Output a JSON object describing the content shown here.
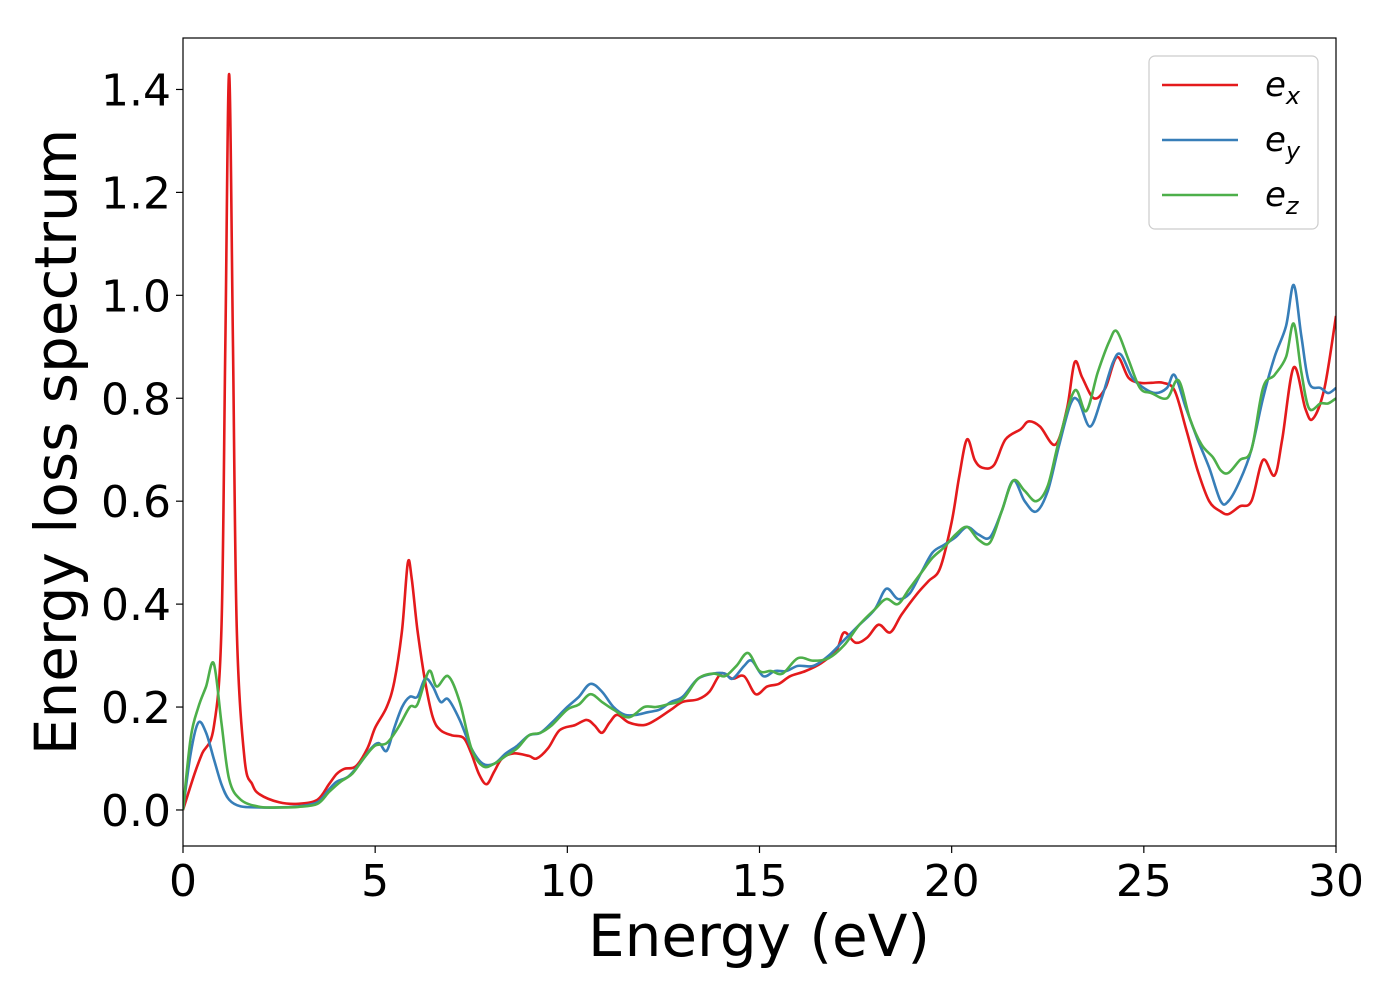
{
  "chart_data": {
    "type": "line",
    "title": "",
    "xlabel": "Energy (eV)",
    "ylabel": "Energy loss spectrum",
    "xlim": [
      0,
      30
    ],
    "ylim": [
      -0.07,
      1.5
    ],
    "xticks": [
      0,
      5,
      10,
      15,
      20,
      25,
      30
    ],
    "xtick_labels": [
      "0",
      "5",
      "10",
      "15",
      "20",
      "25",
      "30"
    ],
    "yticks": [
      0.0,
      0.2,
      0.4,
      0.6,
      0.8,
      1.0,
      1.2,
      1.4
    ],
    "ytick_labels": [
      "0.0",
      "0.2",
      "0.4",
      "0.6",
      "0.8",
      "1.0",
      "1.2",
      "1.4"
    ],
    "grid": false,
    "legend_position": "top-right",
    "series": [
      {
        "name": "e",
        "subscript": "x",
        "color": "#e41a1c",
        "points": [
          [
            0,
            0.0
          ],
          [
            0.3,
            0.07
          ],
          [
            0.5,
            0.11
          ],
          [
            0.8,
            0.16
          ],
          [
            1.0,
            0.35
          ],
          [
            1.1,
            0.9
          ],
          [
            1.2,
            1.43
          ],
          [
            1.3,
            0.9
          ],
          [
            1.4,
            0.35
          ],
          [
            1.6,
            0.1
          ],
          [
            1.8,
            0.05
          ],
          [
            2.0,
            0.03
          ],
          [
            2.5,
            0.015
          ],
          [
            3.0,
            0.012
          ],
          [
            3.5,
            0.02
          ],
          [
            3.8,
            0.05
          ],
          [
            4.0,
            0.07
          ],
          [
            4.2,
            0.08
          ],
          [
            4.5,
            0.085
          ],
          [
            4.8,
            0.12
          ],
          [
            5.0,
            0.16
          ],
          [
            5.3,
            0.2
          ],
          [
            5.5,
            0.25
          ],
          [
            5.7,
            0.35
          ],
          [
            5.85,
            0.48
          ],
          [
            5.95,
            0.45
          ],
          [
            6.1,
            0.35
          ],
          [
            6.3,
            0.25
          ],
          [
            6.5,
            0.18
          ],
          [
            6.7,
            0.155
          ],
          [
            7.0,
            0.145
          ],
          [
            7.3,
            0.14
          ],
          [
            7.5,
            0.11
          ],
          [
            7.7,
            0.07
          ],
          [
            7.9,
            0.05
          ],
          [
            8.1,
            0.075
          ],
          [
            8.3,
            0.1
          ],
          [
            8.6,
            0.11
          ],
          [
            9.0,
            0.105
          ],
          [
            9.2,
            0.1
          ],
          [
            9.5,
            0.12
          ],
          [
            9.8,
            0.155
          ],
          [
            10.2,
            0.165
          ],
          [
            10.5,
            0.175
          ],
          [
            10.7,
            0.165
          ],
          [
            10.9,
            0.15
          ],
          [
            11.1,
            0.17
          ],
          [
            11.3,
            0.185
          ],
          [
            11.6,
            0.17
          ],
          [
            12.0,
            0.165
          ],
          [
            12.3,
            0.175
          ],
          [
            12.7,
            0.195
          ],
          [
            13.0,
            0.21
          ],
          [
            13.4,
            0.215
          ],
          [
            13.7,
            0.23
          ],
          [
            14.0,
            0.265
          ],
          [
            14.3,
            0.255
          ],
          [
            14.6,
            0.26
          ],
          [
            14.9,
            0.225
          ],
          [
            15.2,
            0.24
          ],
          [
            15.5,
            0.245
          ],
          [
            15.8,
            0.26
          ],
          [
            16.2,
            0.27
          ],
          [
            16.6,
            0.285
          ],
          [
            17.0,
            0.31
          ],
          [
            17.2,
            0.345
          ],
          [
            17.5,
            0.325
          ],
          [
            17.8,
            0.335
          ],
          [
            18.1,
            0.36
          ],
          [
            18.4,
            0.345
          ],
          [
            18.7,
            0.38
          ],
          [
            19.1,
            0.42
          ],
          [
            19.4,
            0.445
          ],
          [
            19.7,
            0.47
          ],
          [
            20.0,
            0.56
          ],
          [
            20.2,
            0.65
          ],
          [
            20.4,
            0.72
          ],
          [
            20.6,
            0.68
          ],
          [
            20.8,
            0.665
          ],
          [
            21.1,
            0.67
          ],
          [
            21.4,
            0.72
          ],
          [
            21.8,
            0.74
          ],
          [
            22.0,
            0.755
          ],
          [
            22.3,
            0.745
          ],
          [
            22.7,
            0.71
          ],
          [
            23.0,
            0.78
          ],
          [
            23.2,
            0.87
          ],
          [
            23.4,
            0.84
          ],
          [
            23.7,
            0.8
          ],
          [
            24.0,
            0.82
          ],
          [
            24.3,
            0.88
          ],
          [
            24.6,
            0.84
          ],
          [
            24.9,
            0.83
          ],
          [
            25.2,
            0.83
          ],
          [
            25.5,
            0.83
          ],
          [
            25.8,
            0.815
          ],
          [
            26.1,
            0.74
          ],
          [
            26.4,
            0.66
          ],
          [
            26.7,
            0.6
          ],
          [
            27.0,
            0.58
          ],
          [
            27.2,
            0.575
          ],
          [
            27.5,
            0.59
          ],
          [
            27.8,
            0.6
          ],
          [
            28.1,
            0.68
          ],
          [
            28.4,
            0.65
          ],
          [
            28.6,
            0.72
          ],
          [
            28.9,
            0.86
          ],
          [
            29.2,
            0.78
          ],
          [
            29.4,
            0.76
          ],
          [
            29.7,
            0.82
          ],
          [
            30.0,
            0.96
          ]
        ]
      },
      {
        "name": "e",
        "subscript": "y",
        "color": "#377eb8",
        "points": [
          [
            0,
            0.0
          ],
          [
            0.2,
            0.11
          ],
          [
            0.4,
            0.17
          ],
          [
            0.6,
            0.15
          ],
          [
            0.8,
            0.1
          ],
          [
            1.0,
            0.05
          ],
          [
            1.2,
            0.02
          ],
          [
            1.5,
            0.007
          ],
          [
            2.0,
            0.005
          ],
          [
            2.5,
            0.005
          ],
          [
            3.0,
            0.007
          ],
          [
            3.5,
            0.015
          ],
          [
            3.8,
            0.04
          ],
          [
            4.0,
            0.055
          ],
          [
            4.3,
            0.065
          ],
          [
            4.6,
            0.09
          ],
          [
            4.9,
            0.12
          ],
          [
            5.1,
            0.13
          ],
          [
            5.3,
            0.115
          ],
          [
            5.5,
            0.16
          ],
          [
            5.7,
            0.2
          ],
          [
            5.9,
            0.22
          ],
          [
            6.1,
            0.22
          ],
          [
            6.3,
            0.255
          ],
          [
            6.5,
            0.24
          ],
          [
            6.7,
            0.21
          ],
          [
            6.9,
            0.215
          ],
          [
            7.2,
            0.175
          ],
          [
            7.5,
            0.12
          ],
          [
            7.8,
            0.09
          ],
          [
            8.1,
            0.09
          ],
          [
            8.4,
            0.11
          ],
          [
            8.7,
            0.125
          ],
          [
            9.0,
            0.145
          ],
          [
            9.3,
            0.15
          ],
          [
            9.6,
            0.17
          ],
          [
            10.0,
            0.2
          ],
          [
            10.3,
            0.22
          ],
          [
            10.6,
            0.245
          ],
          [
            10.9,
            0.23
          ],
          [
            11.2,
            0.2
          ],
          [
            11.5,
            0.185
          ],
          [
            11.8,
            0.185
          ],
          [
            12.1,
            0.19
          ],
          [
            12.4,
            0.195
          ],
          [
            12.7,
            0.21
          ],
          [
            13.0,
            0.22
          ],
          [
            13.4,
            0.255
          ],
          [
            13.8,
            0.265
          ],
          [
            14.1,
            0.265
          ],
          [
            14.3,
            0.255
          ],
          [
            14.6,
            0.28
          ],
          [
            14.8,
            0.29
          ],
          [
            15.1,
            0.26
          ],
          [
            15.4,
            0.27
          ],
          [
            15.7,
            0.27
          ],
          [
            16.0,
            0.28
          ],
          [
            16.4,
            0.28
          ],
          [
            16.8,
            0.3
          ],
          [
            17.2,
            0.33
          ],
          [
            17.6,
            0.36
          ],
          [
            18.0,
            0.39
          ],
          [
            18.3,
            0.43
          ],
          [
            18.6,
            0.41
          ],
          [
            18.9,
            0.42
          ],
          [
            19.2,
            0.46
          ],
          [
            19.5,
            0.5
          ],
          [
            19.8,
            0.515
          ],
          [
            20.1,
            0.53
          ],
          [
            20.4,
            0.55
          ],
          [
            20.7,
            0.535
          ],
          [
            21.0,
            0.53
          ],
          [
            21.3,
            0.58
          ],
          [
            21.6,
            0.64
          ],
          [
            21.9,
            0.6
          ],
          [
            22.2,
            0.58
          ],
          [
            22.5,
            0.62
          ],
          [
            22.8,
            0.71
          ],
          [
            23.1,
            0.79
          ],
          [
            23.3,
            0.795
          ],
          [
            23.6,
            0.745
          ],
          [
            23.9,
            0.8
          ],
          [
            24.2,
            0.87
          ],
          [
            24.4,
            0.885
          ],
          [
            24.7,
            0.84
          ],
          [
            25.0,
            0.82
          ],
          [
            25.3,
            0.81
          ],
          [
            25.6,
            0.82
          ],
          [
            25.8,
            0.845
          ],
          [
            26.1,
            0.78
          ],
          [
            26.4,
            0.72
          ],
          [
            26.7,
            0.665
          ],
          [
            27.0,
            0.6
          ],
          [
            27.2,
            0.6
          ],
          [
            27.5,
            0.64
          ],
          [
            27.8,
            0.7
          ],
          [
            28.1,
            0.8
          ],
          [
            28.4,
            0.88
          ],
          [
            28.7,
            0.94
          ],
          [
            28.9,
            1.02
          ],
          [
            29.1,
            0.92
          ],
          [
            29.3,
            0.83
          ],
          [
            29.6,
            0.82
          ],
          [
            29.8,
            0.81
          ],
          [
            30.0,
            0.82
          ]
        ]
      },
      {
        "name": "e",
        "subscript": "z",
        "color": "#4daf4a",
        "points": [
          [
            0,
            0.0
          ],
          [
            0.2,
            0.14
          ],
          [
            0.4,
            0.2
          ],
          [
            0.6,
            0.24
          ],
          [
            0.8,
            0.285
          ],
          [
            1.0,
            0.17
          ],
          [
            1.2,
            0.06
          ],
          [
            1.5,
            0.02
          ],
          [
            2.0,
            0.006
          ],
          [
            2.5,
            0.005
          ],
          [
            3.0,
            0.006
          ],
          [
            3.5,
            0.012
          ],
          [
            3.8,
            0.035
          ],
          [
            4.1,
            0.055
          ],
          [
            4.4,
            0.07
          ],
          [
            4.7,
            0.1
          ],
          [
            5.0,
            0.125
          ],
          [
            5.3,
            0.13
          ],
          [
            5.6,
            0.16
          ],
          [
            5.9,
            0.2
          ],
          [
            6.1,
            0.205
          ],
          [
            6.4,
            0.27
          ],
          [
            6.6,
            0.24
          ],
          [
            6.9,
            0.26
          ],
          [
            7.2,
            0.21
          ],
          [
            7.5,
            0.12
          ],
          [
            7.8,
            0.085
          ],
          [
            8.1,
            0.09
          ],
          [
            8.4,
            0.105
          ],
          [
            8.7,
            0.12
          ],
          [
            9.0,
            0.145
          ],
          [
            9.3,
            0.15
          ],
          [
            9.6,
            0.165
          ],
          [
            10.0,
            0.195
          ],
          [
            10.3,
            0.205
          ],
          [
            10.6,
            0.225
          ],
          [
            10.9,
            0.21
          ],
          [
            11.2,
            0.195
          ],
          [
            11.6,
            0.18
          ],
          [
            12.0,
            0.2
          ],
          [
            12.3,
            0.2
          ],
          [
            12.6,
            0.205
          ],
          [
            13.0,
            0.215
          ],
          [
            13.4,
            0.255
          ],
          [
            13.8,
            0.265
          ],
          [
            14.1,
            0.26
          ],
          [
            14.4,
            0.28
          ],
          [
            14.7,
            0.305
          ],
          [
            15.0,
            0.27
          ],
          [
            15.3,
            0.27
          ],
          [
            15.6,
            0.265
          ],
          [
            16.0,
            0.295
          ],
          [
            16.4,
            0.29
          ],
          [
            16.8,
            0.295
          ],
          [
            17.2,
            0.32
          ],
          [
            17.6,
            0.36
          ],
          [
            18.0,
            0.39
          ],
          [
            18.3,
            0.41
          ],
          [
            18.6,
            0.4
          ],
          [
            18.9,
            0.43
          ],
          [
            19.2,
            0.46
          ],
          [
            19.5,
            0.49
          ],
          [
            19.8,
            0.51
          ],
          [
            20.1,
            0.535
          ],
          [
            20.4,
            0.55
          ],
          [
            20.7,
            0.525
          ],
          [
            21.0,
            0.52
          ],
          [
            21.3,
            0.58
          ],
          [
            21.6,
            0.64
          ],
          [
            21.9,
            0.62
          ],
          [
            22.2,
            0.6
          ],
          [
            22.5,
            0.63
          ],
          [
            22.8,
            0.72
          ],
          [
            23.2,
            0.815
          ],
          [
            23.5,
            0.775
          ],
          [
            23.8,
            0.85
          ],
          [
            24.1,
            0.91
          ],
          [
            24.3,
            0.93
          ],
          [
            24.6,
            0.875
          ],
          [
            24.9,
            0.82
          ],
          [
            25.2,
            0.81
          ],
          [
            25.6,
            0.8
          ],
          [
            25.9,
            0.835
          ],
          [
            26.2,
            0.76
          ],
          [
            26.5,
            0.71
          ],
          [
            26.8,
            0.685
          ],
          [
            27.0,
            0.66
          ],
          [
            27.2,
            0.655
          ],
          [
            27.5,
            0.68
          ],
          [
            27.8,
            0.7
          ],
          [
            28.1,
            0.82
          ],
          [
            28.4,
            0.845
          ],
          [
            28.7,
            0.88
          ],
          [
            28.9,
            0.945
          ],
          [
            29.1,
            0.85
          ],
          [
            29.3,
            0.78
          ],
          [
            29.6,
            0.79
          ],
          [
            29.8,
            0.79
          ],
          [
            30.0,
            0.8
          ]
        ]
      }
    ]
  }
}
